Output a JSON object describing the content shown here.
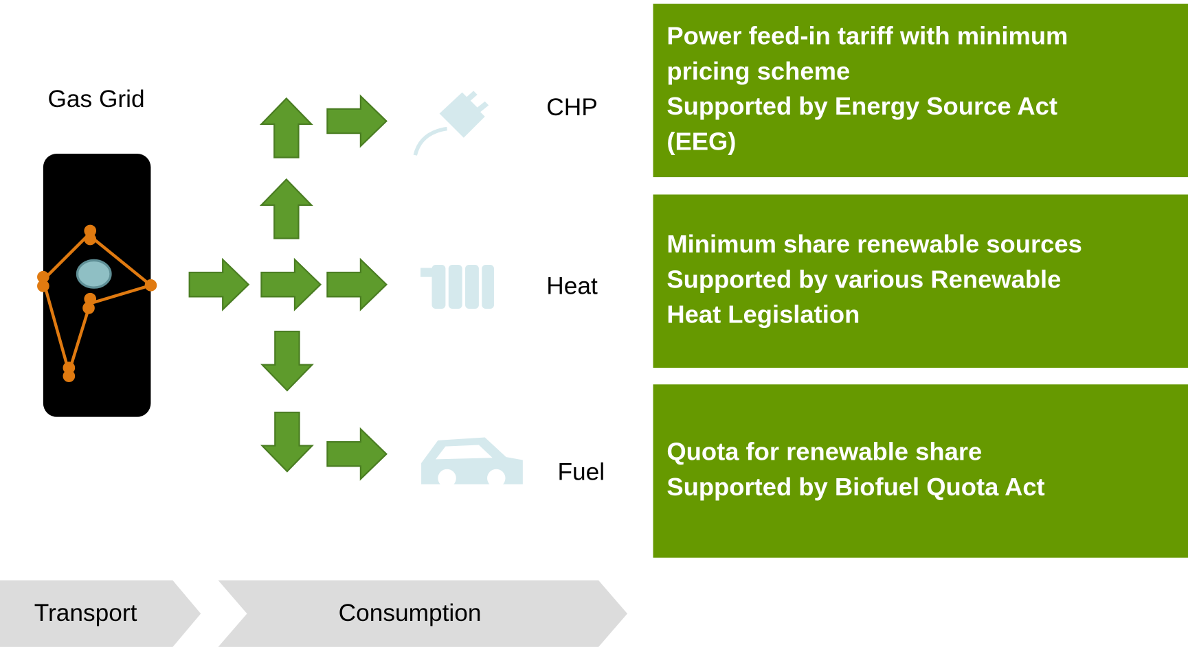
{
  "title": "Gas Grid",
  "uses": [
    {
      "label": "CHP",
      "support": [
        "Power feed-in tariff with minimum",
        "pricing scheme",
        "Supported by Energy Source Act",
        "(EEG)"
      ]
    },
    {
      "label": "Heat",
      "support": [
        "Minimum share renewable sources",
        "Supported by various Renewable",
        "Heat Legislation"
      ]
    },
    {
      "label": "Fuel",
      "support": [
        "Quota for renewable share",
        "Supported by Biofuel Quota Act"
      ]
    }
  ],
  "stages": [
    "Transport",
    "Consumption"
  ]
}
